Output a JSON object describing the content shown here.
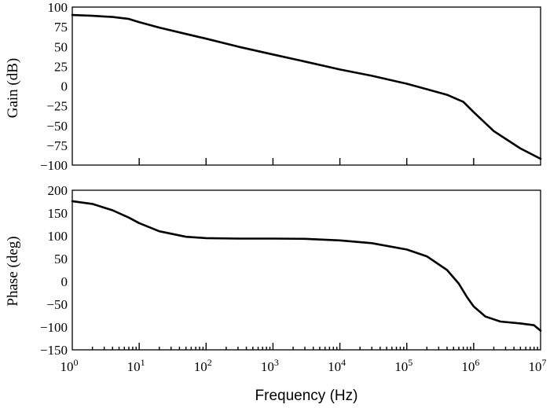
{
  "chart_data": [
    {
      "type": "line",
      "title": "",
      "xlabel": "",
      "ylabel": "Gain (dB)",
      "xscale": "log",
      "xlim": [
        1,
        10000000
      ],
      "ylim": [
        -100,
        100
      ],
      "yticks": [
        "100",
        "75",
        "50",
        "25",
        "0",
        "−25",
        "−50",
        "−75",
        "−100"
      ],
      "grid": false,
      "series": [
        {
          "x": [
            1,
            2,
            4,
            7,
            10,
            20,
            50,
            100,
            300,
            1000,
            3000,
            10000,
            30000,
            100000,
            200000,
            400000,
            700000,
            1000000,
            2000000,
            5000000,
            10000000
          ],
          "y": [
            90,
            89,
            87.5,
            85,
            81,
            74,
            66,
            60,
            50,
            40,
            31,
            21,
            13,
            3,
            -4,
            -11,
            -20,
            -33,
            -57,
            -79,
            -92
          ]
        }
      ]
    },
    {
      "type": "line",
      "title": "",
      "xlabel": "Frequency (Hz)",
      "ylabel": "Phase (deg)",
      "xscale": "log",
      "xlim": [
        1,
        10000000
      ],
      "ylim": [
        -150,
        200
      ],
      "yticks": [
        "200",
        "150",
        "100",
        "50",
        "0",
        "−50",
        "−100",
        "−150"
      ],
      "xticks": [
        "10",
        "10",
        "10",
        "10",
        "10",
        "10",
        "10",
        "10"
      ],
      "xtick_exponents": [
        "0",
        "1",
        "2",
        "3",
        "4",
        "5",
        "6",
        "7"
      ],
      "grid": false,
      "series": [
        {
          "x": [
            1,
            2,
            4,
            7,
            10,
            20,
            50,
            100,
            300,
            1000,
            3000,
            10000,
            30000,
            100000,
            200000,
            400000,
            600000,
            800000,
            1000000,
            1500000,
            2500000,
            5000000,
            8000000,
            10000000
          ],
          "y": [
            176,
            170,
            156,
            140,
            128,
            110,
            98,
            95,
            94,
            94,
            93.5,
            90,
            84,
            70,
            55,
            25,
            -5,
            -35,
            -55,
            -77,
            -88,
            -92,
            -96,
            -108
          ]
        }
      ]
    }
  ]
}
